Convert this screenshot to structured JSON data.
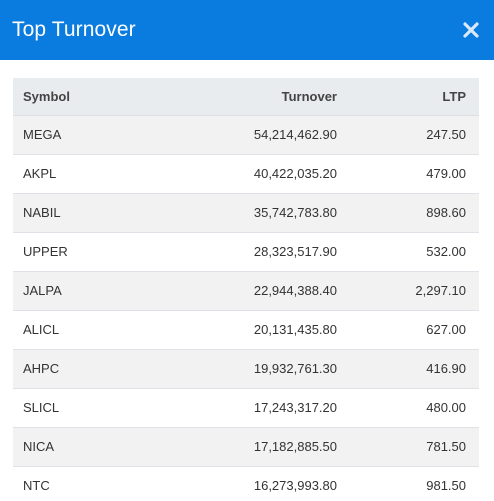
{
  "modal": {
    "title": "Top Turnover",
    "close_icon": "close-icon"
  },
  "colors": {
    "header_bg": "#0a7bdf",
    "header_text": "#ffffff",
    "table_head_bg": "#e9ecef",
    "row_stripe": "#f2f2f2"
  },
  "table": {
    "columns": [
      "Symbol",
      "Turnover",
      "LTP"
    ],
    "rows": [
      {
        "symbol": "MEGA",
        "turnover": "54,214,462.90",
        "ltp": "247.50"
      },
      {
        "symbol": "AKPL",
        "turnover": "40,422,035.20",
        "ltp": "479.00"
      },
      {
        "symbol": "NABIL",
        "turnover": "35,742,783.80",
        "ltp": "898.60"
      },
      {
        "symbol": "UPPER",
        "turnover": "28,323,517.90",
        "ltp": "532.00"
      },
      {
        "symbol": "JALPA",
        "turnover": "22,944,388.40",
        "ltp": "2,297.10"
      },
      {
        "symbol": "ALICL",
        "turnover": "20,131,435.80",
        "ltp": "627.00"
      },
      {
        "symbol": "AHPC",
        "turnover": "19,932,761.30",
        "ltp": "416.90"
      },
      {
        "symbol": "SLICL",
        "turnover": "17,243,317.20",
        "ltp": "480.00"
      },
      {
        "symbol": "NICA",
        "turnover": "17,182,885.50",
        "ltp": "781.50"
      },
      {
        "symbol": "NTC",
        "turnover": "16,273,993.80",
        "ltp": "981.50"
      }
    ]
  }
}
